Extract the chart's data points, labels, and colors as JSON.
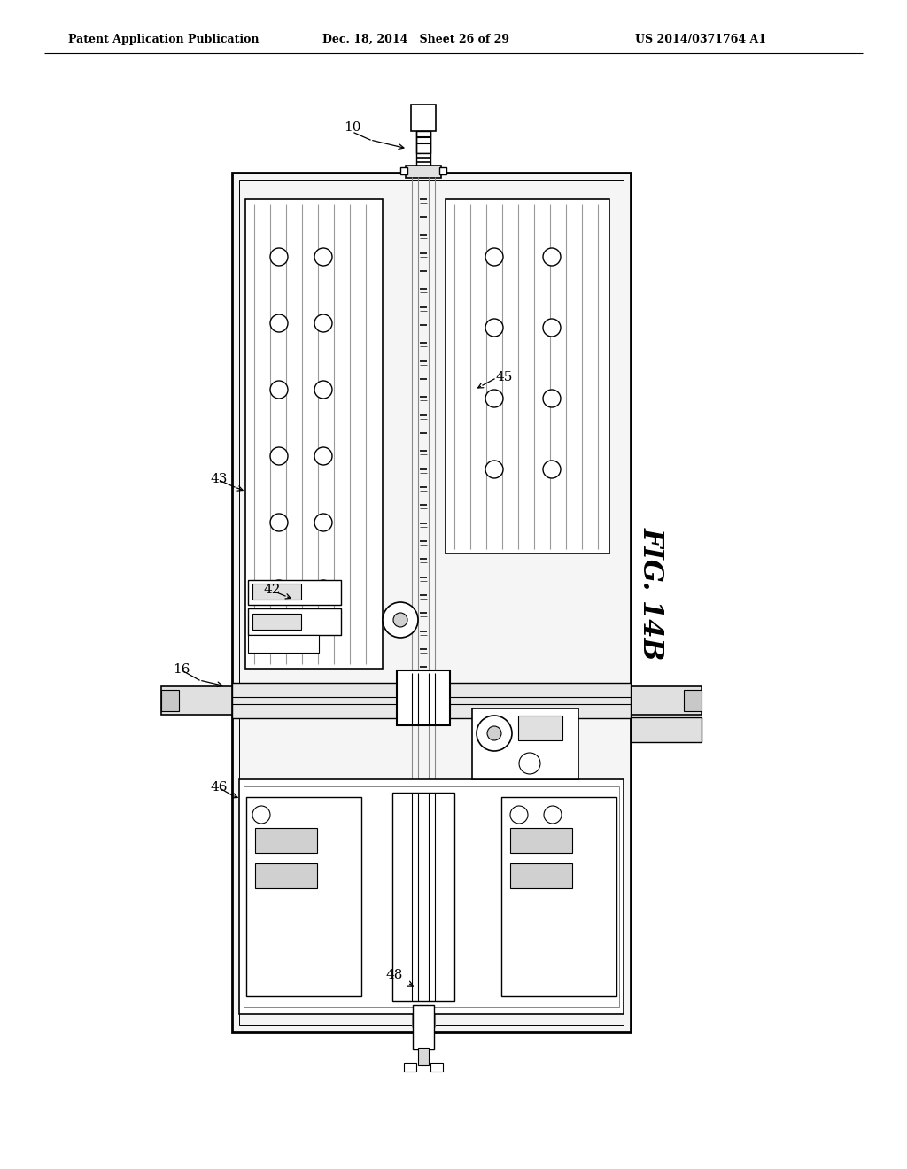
{
  "title_left": "Patent Application Publication",
  "title_center": "Dec. 18, 2014   Sheet 26 of 29",
  "title_right": "US 2014/0371764 A1",
  "fig_label": "FIG. 14B",
  "bg": "#ffffff",
  "lc": "#000000",
  "gray1": "#e8e8e8",
  "gray2": "#d0d0d0",
  "gray3": "#b8b8b8"
}
